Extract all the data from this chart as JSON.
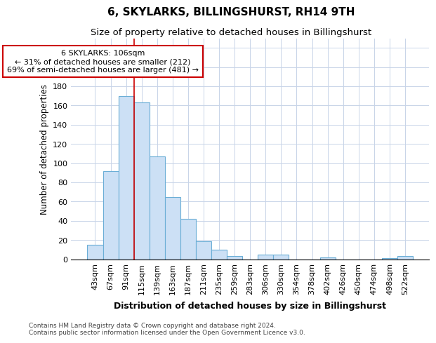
{
  "title": "6, SKYLARKS, BILLINGSHURST, RH14 9TH",
  "subtitle": "Size of property relative to detached houses in Billingshurst",
  "xlabel": "Distribution of detached houses by size in Billingshurst",
  "ylabel": "Number of detached properties",
  "categories": [
    "43sqm",
    "67sqm",
    "91sqm",
    "115sqm",
    "139sqm",
    "163sqm",
    "187sqm",
    "211sqm",
    "235sqm",
    "259sqm",
    "283sqm",
    "306sqm",
    "330sqm",
    "354sqm",
    "378sqm",
    "402sqm",
    "426sqm",
    "450sqm",
    "474sqm",
    "498sqm",
    "522sqm"
  ],
  "values": [
    15,
    92,
    170,
    163,
    107,
    65,
    42,
    19,
    10,
    3,
    0,
    5,
    5,
    0,
    0,
    2,
    0,
    0,
    0,
    1,
    3
  ],
  "bar_color": "#cce0f5",
  "bar_edge_color": "#6baed6",
  "vline_color": "#cc0000",
  "vline_pos": 3,
  "annotation_text": "6 SKYLARKS: 106sqm\n← 31% of detached houses are smaller (212)\n69% of semi-detached houses are larger (481) →",
  "annotation_box_facecolor": "#ffffff",
  "annotation_box_edgecolor": "#cc0000",
  "ylim": [
    0,
    230
  ],
  "yticks": [
    0,
    20,
    40,
    60,
    80,
    100,
    120,
    140,
    160,
    180,
    200,
    220
  ],
  "footer": "Contains HM Land Registry data © Crown copyright and database right 2024.\nContains public sector information licensed under the Open Government Licence v3.0.",
  "bg_color": "#ffffff",
  "grid_color": "#c8d4e8",
  "title_fontsize": 11,
  "subtitle_fontsize": 9.5,
  "ylabel_fontsize": 8.5,
  "xlabel_fontsize": 9,
  "tick_fontsize": 8,
  "footer_fontsize": 6.5,
  "ann_fontsize": 8
}
